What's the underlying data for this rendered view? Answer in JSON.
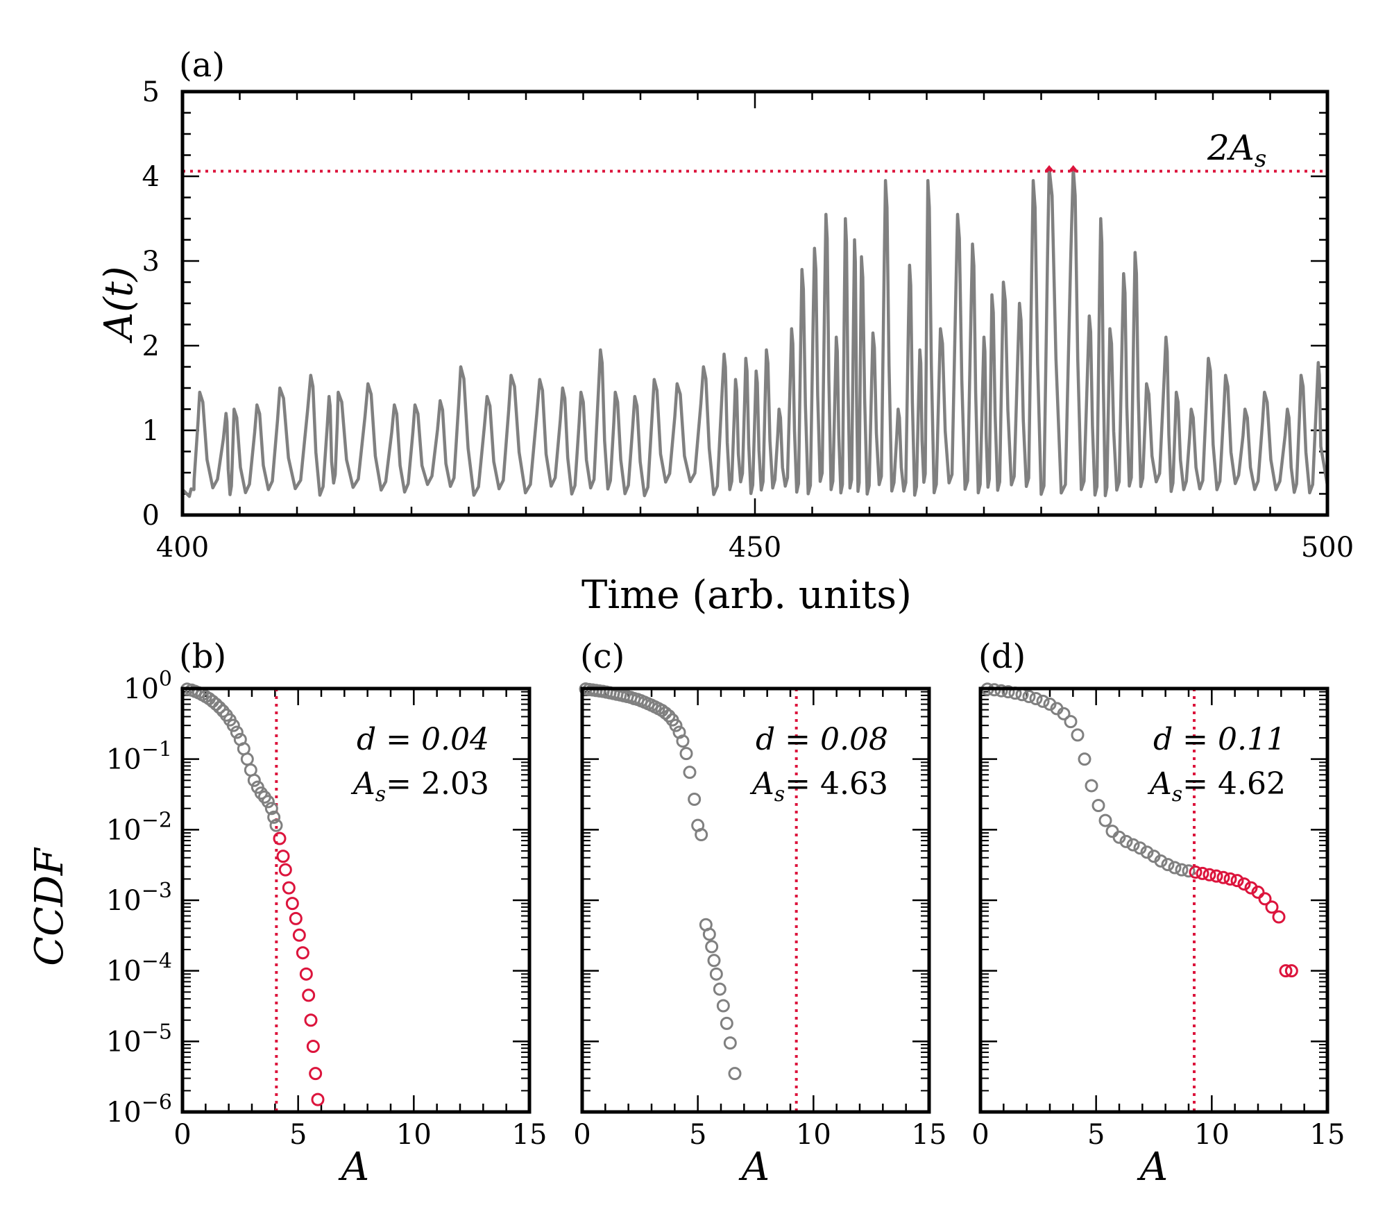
{
  "colors": {
    "series": "#808080",
    "extreme": "#dc143c",
    "axis": "#000000"
  },
  "chart_data": [
    {
      "panel": "(a)",
      "type": "line",
      "xlabel": "Time (arb. units)",
      "ylabel": "A(t)",
      "xlim": [
        400,
        500
      ],
      "ylim": [
        0,
        5
      ],
      "xticks": [
        "400",
        "450",
        "500"
      ],
      "yticks": [
        "0",
        "1",
        "2",
        "3",
        "4",
        "5"
      ],
      "threshold": {
        "label": "2A",
        "sub": "s",
        "value": 4.06
      },
      "peaks": [
        [
          401.5,
          1.45
        ],
        [
          403.8,
          1.2
        ],
        [
          404.5,
          1.25
        ],
        [
          406.5,
          1.3
        ],
        [
          408.5,
          1.5
        ],
        [
          411.2,
          1.65
        ],
        [
          412.8,
          1.4
        ],
        [
          413.6,
          1.45
        ],
        [
          416.2,
          1.55
        ],
        [
          418.5,
          1.3
        ],
        [
          420.3,
          1.3
        ],
        [
          422.5,
          1.35
        ],
        [
          424.3,
          1.75
        ],
        [
          426.6,
          1.4
        ],
        [
          428.7,
          1.65
        ],
        [
          431.2,
          1.6
        ],
        [
          433.2,
          1.5
        ],
        [
          434.8,
          1.45
        ],
        [
          436.5,
          1.95
        ],
        [
          437.8,
          1.45
        ],
        [
          439.5,
          1.4
        ],
        [
          441.2,
          1.6
        ],
        [
          443.2,
          1.55
        ],
        [
          445.5,
          1.75
        ],
        [
          447.3,
          1.9
        ],
        [
          448.3,
          1.6
        ],
        [
          449.2,
          1.85
        ],
        [
          450.1,
          1.7
        ],
        [
          451.0,
          1.95
        ],
        [
          452.1,
          1.25
        ],
        [
          453.2,
          2.2
        ],
        [
          454.1,
          2.9
        ],
        [
          455.2,
          3.15
        ],
        [
          456.2,
          3.55
        ],
        [
          457.1,
          2.1
        ],
        [
          457.9,
          3.5
        ],
        [
          458.7,
          3.25
        ],
        [
          459.3,
          3.05
        ],
        [
          460.3,
          2.15
        ],
        [
          461.4,
          3.95
        ],
        [
          462.5,
          1.25
        ],
        [
          463.5,
          2.95
        ],
        [
          464.4,
          1.95
        ],
        [
          465.1,
          3.95
        ],
        [
          466.2,
          2.2
        ],
        [
          467.7,
          3.55
        ],
        [
          469.0,
          3.2
        ],
        [
          470.0,
          2.1
        ],
        [
          470.7,
          2.6
        ],
        [
          471.7,
          2.75
        ],
        [
          473.1,
          2.5
        ],
        [
          474.3,
          3.95
        ],
        [
          475.7,
          4.1
        ],
        [
          477.8,
          4.1
        ],
        [
          479.2,
          2.35
        ],
        [
          480.2,
          3.5
        ],
        [
          481.0,
          2.2
        ],
        [
          482.2,
          2.85
        ],
        [
          483.2,
          3.1
        ],
        [
          484.2,
          1.55
        ],
        [
          485.9,
          2.1
        ],
        [
          486.8,
          1.45
        ],
        [
          488.1,
          1.25
        ],
        [
          489.6,
          1.85
        ],
        [
          491.1,
          1.65
        ],
        [
          492.8,
          1.25
        ],
        [
          494.5,
          1.45
        ],
        [
          496.5,
          1.25
        ],
        [
          497.7,
          1.65
        ],
        [
          499.2,
          1.8
        ]
      ]
    },
    {
      "panel": "(b)",
      "type": "scatter",
      "xlabel": "A",
      "ylabel": "CCDF",
      "xlim": [
        0,
        15
      ],
      "ylim_log10": [
        -6,
        0
      ],
      "xticks": [
        "0",
        "5",
        "10",
        "15"
      ],
      "ytick_labels": {
        "base": "10",
        "exponents": [
          "0",
          "−1",
          "−2",
          "−3",
          "−4",
          "−5",
          "−6"
        ]
      },
      "threshold": 4.06,
      "annotation": {
        "d_label": "d = 0.04",
        "as_label": "= 2.03"
      },
      "series_normal": [
        [
          0.2,
          0.98
        ],
        [
          0.4,
          0.95
        ],
        [
          0.55,
          0.91
        ],
        [
          0.7,
          0.87
        ],
        [
          0.85,
          0.82
        ],
        [
          1.0,
          0.77
        ],
        [
          1.15,
          0.72
        ],
        [
          1.3,
          0.66
        ],
        [
          1.45,
          0.6
        ],
        [
          1.6,
          0.54
        ],
        [
          1.75,
          0.48
        ],
        [
          1.9,
          0.42
        ],
        [
          2.05,
          0.36
        ],
        [
          2.2,
          0.3
        ],
        [
          2.35,
          0.24
        ],
        [
          2.5,
          0.19
        ],
        [
          2.65,
          0.14
        ],
        [
          2.8,
          0.1
        ],
        [
          2.95,
          0.07
        ],
        [
          3.1,
          0.05
        ],
        [
          3.25,
          0.04
        ],
        [
          3.4,
          0.033
        ],
        [
          3.55,
          0.029
        ],
        [
          3.7,
          0.025
        ],
        [
          3.85,
          0.02
        ],
        [
          3.95,
          0.015
        ],
        [
          4.05,
          0.0115
        ]
      ],
      "series_extreme": [
        [
          4.2,
          0.0075
        ],
        [
          4.35,
          0.0042
        ],
        [
          4.45,
          0.0027
        ],
        [
          4.6,
          0.0015
        ],
        [
          4.75,
          0.0009
        ],
        [
          4.9,
          0.00055
        ],
        [
          5.05,
          0.00032
        ],
        [
          5.2,
          0.00018
        ],
        [
          5.35,
          9e-05
        ],
        [
          5.45,
          4.5e-05
        ],
        [
          5.55,
          2e-05
        ],
        [
          5.65,
          8.5e-06
        ],
        [
          5.75,
          3.5e-06
        ],
        [
          5.85,
          1.5e-06
        ]
      ]
    },
    {
      "panel": "(c)",
      "type": "scatter",
      "xlabel": "A",
      "xlim": [
        0,
        15
      ],
      "ylim_log10": [
        -6,
        0
      ],
      "xticks": [
        "0",
        "5",
        "10",
        "15"
      ],
      "threshold": 9.26,
      "annotation": {
        "d_label": "d = 0.08",
        "as_label": "= 4.63"
      },
      "series_normal": [
        [
          0.15,
          0.985
        ],
        [
          0.3,
          0.97
        ],
        [
          0.45,
          0.955
        ],
        [
          0.6,
          0.94
        ],
        [
          0.75,
          0.925
        ],
        [
          0.9,
          0.91
        ],
        [
          1.05,
          0.89
        ],
        [
          1.2,
          0.87
        ],
        [
          1.35,
          0.85
        ],
        [
          1.5,
          0.83
        ],
        [
          1.65,
          0.81
        ],
        [
          1.8,
          0.79
        ],
        [
          1.95,
          0.77
        ],
        [
          2.1,
          0.75
        ],
        [
          2.25,
          0.72
        ],
        [
          2.4,
          0.7
        ],
        [
          2.55,
          0.67
        ],
        [
          2.7,
          0.64
        ],
        [
          2.85,
          0.61
        ],
        [
          3.0,
          0.58
        ],
        [
          3.15,
          0.55
        ],
        [
          3.3,
          0.52
        ],
        [
          3.45,
          0.49
        ],
        [
          3.6,
          0.45
        ],
        [
          3.75,
          0.41
        ],
        [
          3.9,
          0.36
        ],
        [
          4.05,
          0.3
        ],
        [
          4.2,
          0.24
        ],
        [
          4.35,
          0.18
        ],
        [
          4.5,
          0.12
        ],
        [
          4.65,
          0.065
        ],
        [
          4.85,
          0.027
        ],
        [
          5.0,
          0.0115
        ],
        [
          5.15,
          0.0085
        ],
        [
          5.35,
          0.00045
        ],
        [
          5.5,
          0.00033
        ],
        [
          5.6,
          0.00022
        ],
        [
          5.7,
          0.00014
        ],
        [
          5.8,
          9e-05
        ],
        [
          5.95,
          5.5e-05
        ],
        [
          6.1,
          3.2e-05
        ],
        [
          6.25,
          1.8e-05
        ],
        [
          6.4,
          9.5e-06
        ],
        [
          6.6,
          3.5e-06
        ]
      ],
      "series_extreme": []
    },
    {
      "panel": "(d)",
      "type": "scatter",
      "xlabel": "A",
      "xlim": [
        0,
        15
      ],
      "ylim_log10": [
        -6,
        0
      ],
      "xticks": [
        "0",
        "5",
        "10",
        "15"
      ],
      "threshold": 9.24,
      "annotation": {
        "d_label": "d = 0.11",
        "as_label": "= 4.62"
      },
      "series_normal": [
        [
          0.3,
          0.98
        ],
        [
          0.6,
          0.96
        ],
        [
          0.9,
          0.93
        ],
        [
          1.2,
          0.9
        ],
        [
          1.5,
          0.86
        ],
        [
          1.8,
          0.82
        ],
        [
          2.1,
          0.77
        ],
        [
          2.4,
          0.72
        ],
        [
          2.7,
          0.66
        ],
        [
          3.0,
          0.6
        ],
        [
          3.3,
          0.52
        ],
        [
          3.6,
          0.44
        ],
        [
          3.9,
          0.34
        ],
        [
          4.2,
          0.22
        ],
        [
          4.5,
          0.1
        ],
        [
          4.8,
          0.042
        ],
        [
          5.1,
          0.022
        ],
        [
          5.4,
          0.0135
        ],
        [
          5.7,
          0.0095
        ],
        [
          6.0,
          0.0078
        ],
        [
          6.3,
          0.0068
        ],
        [
          6.6,
          0.0061
        ],
        [
          6.9,
          0.0055
        ],
        [
          7.2,
          0.0048
        ],
        [
          7.5,
          0.0042
        ],
        [
          7.8,
          0.0036
        ],
        [
          8.1,
          0.0032
        ],
        [
          8.4,
          0.0029
        ],
        [
          8.7,
          0.0027
        ],
        [
          9.0,
          0.0026
        ]
      ],
      "series_extreme": [
        [
          9.3,
          0.0025
        ],
        [
          9.6,
          0.0024
        ],
        [
          9.9,
          0.0023
        ],
        [
          10.2,
          0.0022
        ],
        [
          10.5,
          0.0021
        ],
        [
          10.8,
          0.002
        ],
        [
          11.1,
          0.0019
        ],
        [
          11.4,
          0.0017
        ],
        [
          11.7,
          0.0015
        ],
        [
          12.0,
          0.0013
        ],
        [
          12.3,
          0.00105
        ],
        [
          12.6,
          0.0008
        ],
        [
          12.9,
          0.00058
        ],
        [
          13.2,
          0.0001
        ],
        [
          13.45,
          0.0001
        ]
      ]
    }
  ]
}
